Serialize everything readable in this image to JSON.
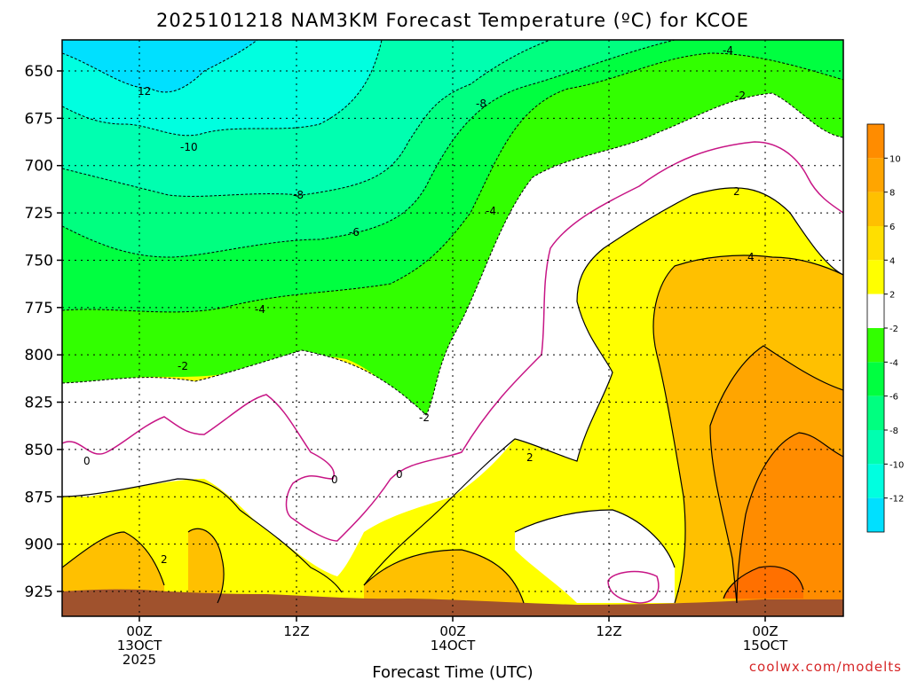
{
  "chart_data": {
    "type": "heatmap",
    "title": "2025101218 NAM3KM Forecast Temperature (ºC) for KCOE",
    "xlabel": "Forecast Time (UTC)",
    "ylabel": "",
    "y_ticks": [
      "650",
      "675",
      "700",
      "725",
      "750",
      "775",
      "800",
      "825",
      "850",
      "875",
      "900",
      "925"
    ],
    "x_ticks": [
      {
        "line1": "00Z",
        "line2": "13OCT",
        "line3": "2025"
      },
      {
        "line1": "12Z",
        "line2": "",
        "line3": ""
      },
      {
        "line1": "00Z",
        "line2": "14OCT",
        "line3": ""
      },
      {
        "line1": "12Z",
        "line2": "",
        "line3": ""
      },
      {
        "line1": "00Z",
        "line2": "15OCT",
        "line3": ""
      }
    ],
    "colorbar": {
      "labels": [
        "10",
        "8",
        "6",
        "4",
        "2",
        "-2",
        "-4",
        "-6",
        "-8",
        "-10",
        "-12"
      ],
      "colors": [
        "#ff8c00",
        "#ffa500",
        "#ffc000",
        "#ffdf00",
        "#ffff00",
        "#ffffff",
        "#32ff00",
        "#00ff40",
        "#00ff80",
        "#00ffb0",
        "#00ffe0",
        "#00e0ff"
      ]
    },
    "contour_labels": [
      "12",
      "-10",
      "-8",
      "-6",
      "-4",
      "-2",
      "-8",
      "-4",
      "-4",
      "-2",
      "2",
      "4",
      "0",
      "0",
      "0",
      "-2",
      "2",
      "2"
    ],
    "annotations": [],
    "credit": "coolwx.com/modelts"
  }
}
